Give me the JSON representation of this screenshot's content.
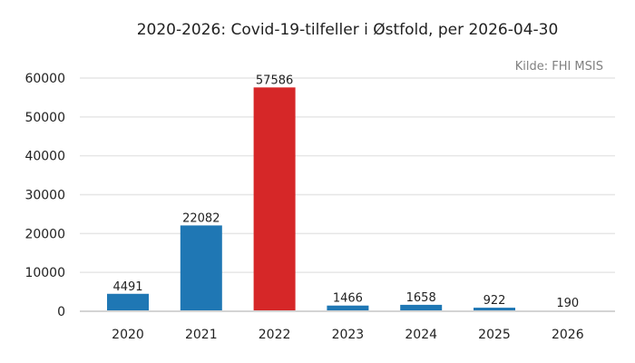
{
  "chart_data": {
    "type": "bar",
    "title": "2020-2026: Covid-19-tilfeller i Østfold, per 2026-04-30",
    "source": "Kilde: FHI MSIS",
    "categories": [
      "2020",
      "2021",
      "2022",
      "2023",
      "2024",
      "2025",
      "2026"
    ],
    "values": [
      4491,
      22082,
      57586,
      1466,
      1658,
      922,
      190
    ],
    "value_labels": [
      "4491",
      "22082",
      "57586",
      "1466",
      "1658",
      "922",
      "190"
    ],
    "y_ticks": [
      0,
      10000,
      20000,
      30000,
      40000,
      50000,
      60000
    ],
    "y_tick_labels": [
      "0",
      "10000",
      "20000",
      "30000",
      "40000",
      "50000",
      "60000"
    ],
    "ylim": [
      0,
      65000
    ],
    "grid": true,
    "colors": {
      "default": "#1f77b4",
      "highlight": "#d62728",
      "grid": "#e6e6e6",
      "text": "#222222",
      "source": "#808080"
    },
    "highlight_category": "2022"
  }
}
